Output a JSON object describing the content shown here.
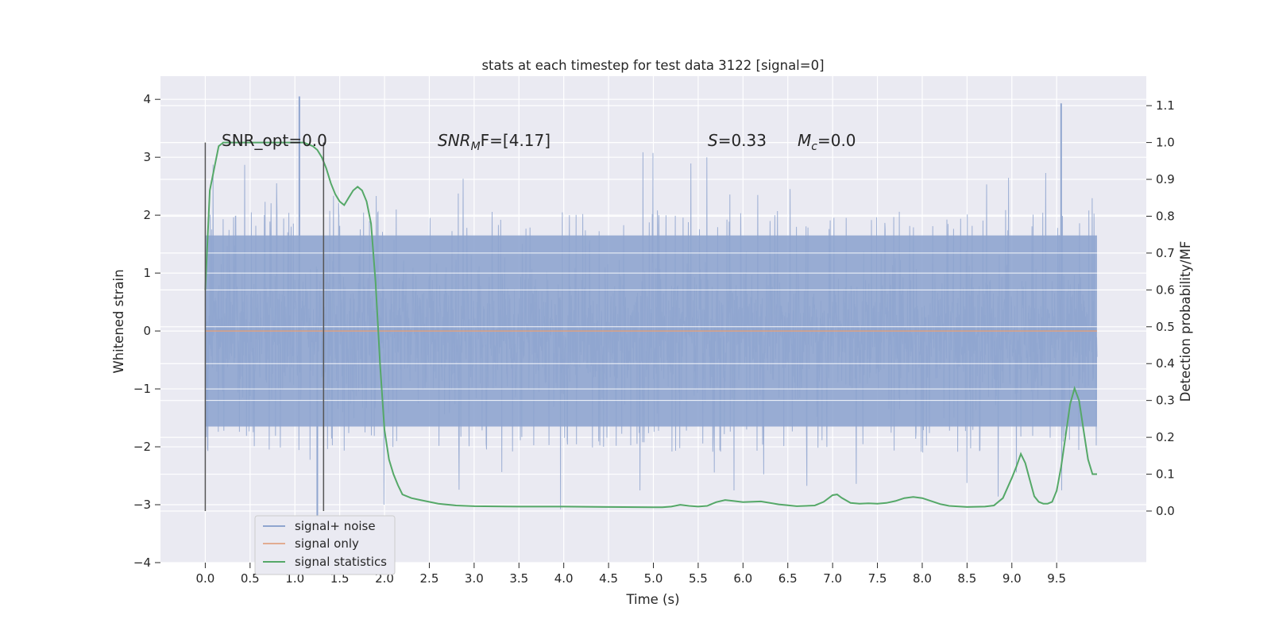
{
  "chart_data": {
    "type": "line",
    "title": "stats at each timestep for test data 3122 [signal=0]",
    "xlabel": "Time (s)",
    "ylabel": "Whitened strain",
    "y2label": "Detection probability/MF",
    "xlim": [
      -0.5,
      10.5
    ],
    "ylim": [
      -4,
      4.4
    ],
    "y2lim": [
      -0.14,
      1.18
    ],
    "xticks": [
      "0.0",
      "0.5",
      "1.0",
      "1.5",
      "2.0",
      "2.5",
      "3.0",
      "3.5",
      "4.0",
      "4.5",
      "5.0",
      "5.5",
      "6.0",
      "6.5",
      "7.0",
      "7.5",
      "8.0",
      "8.5",
      "9.0",
      "9.5"
    ],
    "xtick_values": [
      0,
      0.5,
      1,
      1.5,
      2,
      2.5,
      3,
      3.5,
      4,
      4.5,
      5,
      5.5,
      6,
      6.5,
      7,
      7.5,
      8,
      8.5,
      9,
      9.5
    ],
    "yticks": [
      "4",
      "3",
      "2",
      "1",
      "0",
      "−1",
      "−2",
      "−3",
      "−4"
    ],
    "ytick_values": [
      4,
      3,
      2,
      1,
      0,
      -1,
      -2,
      -3,
      -4
    ],
    "y2ticks": [
      "1.1",
      "1.0",
      "0.9",
      "0.8",
      "0.7",
      "0.6",
      "0.5",
      "0.4",
      "0.3",
      "0.2",
      "0.1",
      "0.0"
    ],
    "y2tick_values": [
      1.1,
      1.0,
      0.9,
      0.8,
      0.7,
      0.6,
      0.5,
      0.4,
      0.3,
      0.2,
      0.1,
      0.0
    ],
    "grid": true,
    "legend_position": "bottom-left",
    "annotations": {
      "snr_opt": "SNR_opt=0.0",
      "snr_mf_base": "SNR",
      "snr_mf_sub": "M",
      "snr_mf_rest": "F=[4.17]",
      "s_base": "S",
      "s_rest": "=0.33",
      "mc_base": "M",
      "mc_sub": "c",
      "mc_rest": "=0.0"
    },
    "vertical_markers": [
      0.0,
      1.32
    ],
    "series": [
      {
        "name": "signal+ noise",
        "color": "#8fa5cf",
        "t_range": [
          0.0,
          9.95
        ],
        "envelope_strain": 1.65,
        "peak_strain": [
          4.05,
          -3.2
        ]
      },
      {
        "name": "signal only",
        "color": "#dd8452",
        "x": [
          0.0,
          9.95
        ],
        "y": [
          0,
          0
        ]
      },
      {
        "name": "signal statistics",
        "color": "#55a868",
        "x": [
          0.0,
          0.05,
          0.1,
          0.15,
          0.2,
          0.3,
          0.5,
          0.7,
          0.9,
          1.0,
          1.1,
          1.2,
          1.25,
          1.3,
          1.35,
          1.4,
          1.45,
          1.5,
          1.55,
          1.6,
          1.65,
          1.7,
          1.75,
          1.8,
          1.85,
          1.9,
          1.95,
          2.0,
          2.05,
          2.1,
          2.15,
          2.2,
          2.3,
          2.4,
          2.6,
          2.8,
          3.0,
          3.5,
          4.0,
          4.5,
          5.0,
          5.1,
          5.2,
          5.3,
          5.4,
          5.5,
          5.6,
          5.7,
          5.8,
          5.9,
          6.0,
          6.2,
          6.4,
          6.6,
          6.8,
          6.9,
          7.0,
          7.05,
          7.1,
          7.2,
          7.3,
          7.4,
          7.5,
          7.6,
          7.7,
          7.8,
          7.9,
          8.0,
          8.1,
          8.2,
          8.3,
          8.5,
          8.7,
          8.8,
          8.9,
          9.0,
          9.05,
          9.1,
          9.15,
          9.2,
          9.25,
          9.3,
          9.35,
          9.4,
          9.45,
          9.5,
          9.55,
          9.6,
          9.65,
          9.7,
          9.75,
          9.8,
          9.85,
          9.9,
          9.95
        ],
        "y": [
          0.6,
          0.87,
          0.93,
          0.99,
          1.0,
          1.0,
          1.0,
          1.0,
          1.0,
          1.0,
          1.0,
          0.99,
          0.98,
          0.96,
          0.93,
          0.89,
          0.86,
          0.84,
          0.83,
          0.85,
          0.87,
          0.88,
          0.87,
          0.84,
          0.78,
          0.62,
          0.4,
          0.22,
          0.14,
          0.1,
          0.07,
          0.045,
          0.035,
          0.03,
          0.02,
          0.015,
          0.013,
          0.012,
          0.012,
          0.011,
          0.01,
          0.01,
          0.012,
          0.017,
          0.014,
          0.012,
          0.014,
          0.024,
          0.03,
          0.027,
          0.024,
          0.026,
          0.018,
          0.013,
          0.015,
          0.025,
          0.043,
          0.045,
          0.036,
          0.022,
          0.02,
          0.021,
          0.02,
          0.022,
          0.027,
          0.035,
          0.038,
          0.035,
          0.027,
          0.019,
          0.014,
          0.011,
          0.012,
          0.015,
          0.035,
          0.09,
          0.12,
          0.155,
          0.13,
          0.085,
          0.04,
          0.025,
          0.02,
          0.02,
          0.025,
          0.055,
          0.12,
          0.205,
          0.29,
          0.333,
          0.3,
          0.22,
          0.14,
          0.1,
          0.1
        ]
      }
    ]
  }
}
